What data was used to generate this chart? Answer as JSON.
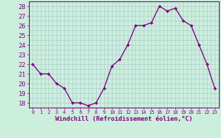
{
  "x": [
    0,
    1,
    2,
    3,
    4,
    5,
    6,
    7,
    8,
    9,
    10,
    11,
    12,
    13,
    14,
    15,
    16,
    17,
    18,
    19,
    20,
    21,
    22,
    23
  ],
  "y": [
    22,
    21,
    21,
    20,
    19.5,
    18,
    18,
    17.7,
    18,
    19.5,
    21.8,
    22.5,
    24,
    26,
    26,
    26.3,
    28,
    27.5,
    27.8,
    26.5,
    26,
    24,
    22,
    19.5
  ],
  "line_color": "#800080",
  "marker": "D",
  "marker_size": 2.0,
  "background_color": "#cceedd",
  "grid_color": "#aacccc",
  "xlabel": "Windchill (Refroidissement éolien,°C)",
  "xlabel_color": "#800080",
  "tick_color": "#800080",
  "spine_color": "#800080",
  "ylim": [
    17.5,
    28.5
  ],
  "yticks": [
    18,
    19,
    20,
    21,
    22,
    23,
    24,
    25,
    26,
    27,
    28
  ],
  "xticks": [
    0,
    1,
    2,
    3,
    4,
    5,
    6,
    7,
    8,
    9,
    10,
    11,
    12,
    13,
    14,
    15,
    16,
    17,
    18,
    19,
    20,
    21,
    22,
    23
  ],
  "linewidth": 1.0,
  "font_size": 6.5,
  "xlabel_font_size": 6.5
}
